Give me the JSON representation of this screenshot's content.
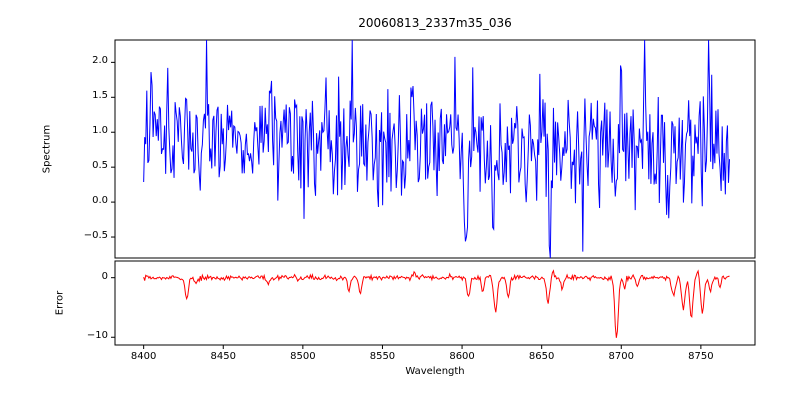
{
  "chart_data": {
    "type": "line",
    "title": "20060813_2337m35_036",
    "xlabel": "Wavelength",
    "grid": false,
    "legend": "none",
    "x": {
      "start": 8400,
      "end": 8768,
      "points": 560,
      "xlim": [
        8382,
        8784
      ],
      "ticks": [
        8400,
        8450,
        8500,
        8550,
        8600,
        8650,
        8700,
        8750
      ],
      "tick_labels": [
        "8400",
        "8450",
        "8500",
        "8550",
        "8600",
        "8650",
        "8700",
        "8750"
      ]
    },
    "seed": 20060813,
    "panels": [
      {
        "name": "spectrum",
        "ylabel": "Spectrum",
        "color": "#0000ff",
        "ylim": [
          -0.8,
          2.32
        ],
        "yticks": [
          2.0,
          1.5,
          1.0,
          0.5,
          0.0,
          -0.5
        ],
        "ytick_labels": [
          "2.0",
          "1.5",
          "1.0",
          "0.5",
          "0.0",
          "−0.5"
        ],
        "noise_mean": 0.85,
        "noise_std": 0.42,
        "features": [
          [
            8405,
            0.7,
            0.8
          ],
          [
            8415,
            0.9,
            0.8
          ],
          [
            8440,
            0.9,
            0.8
          ],
          [
            8531,
            1.2,
            0.8
          ],
          [
            8569,
            0.9,
            0.8
          ],
          [
            8602,
            -1.2,
            1.2
          ],
          [
            8620,
            -1.45,
            1.3
          ],
          [
            8640,
            -0.8,
            1.0
          ],
          [
            8655,
            -1.3,
            1.2
          ],
          [
            8676,
            -0.9,
            1.0
          ],
          [
            8697,
            -0.9,
            1.5
          ],
          [
            8700,
            1.2,
            0.8
          ],
          [
            8715,
            1.3,
            0.8
          ],
          [
            8730,
            -1.1,
            1.2
          ],
          [
            8745,
            -1.0,
            1.2
          ],
          [
            8755,
            1.2,
            0.8
          ]
        ]
      },
      {
        "name": "error",
        "ylabel": "Error",
        "color": "#ff0000",
        "ylim": [
          -11.3,
          2.8
        ],
        "yticks": [
          0,
          -10
        ],
        "ytick_labels": [
          "0",
          "−10"
        ],
        "noise_mean": 0.0,
        "noise_std": 0.22,
        "features": [
          [
            8427,
            -3.6,
            1.5
          ],
          [
            8433,
            -1.2,
            1.0
          ],
          [
            8478,
            -1.6,
            1.2
          ],
          [
            8529,
            -2.2,
            1.2
          ],
          [
            8536,
            -2.6,
            1.2
          ],
          [
            8570,
            0.9,
            1.0
          ],
          [
            8604,
            -3.2,
            1.5
          ],
          [
            8613,
            -2.2,
            1.2
          ],
          [
            8621,
            -5.6,
            1.5
          ],
          [
            8629,
            -3.0,
            1.2
          ],
          [
            8654,
            -4.2,
            1.5
          ],
          [
            8657,
            1.2,
            1.0
          ],
          [
            8663,
            -1.8,
            1.2
          ],
          [
            8697,
            -10.0,
            1.5
          ],
          [
            8702,
            -2.0,
            1.0
          ],
          [
            8710,
            -1.6,
            1.0
          ],
          [
            8733,
            -3.2,
            1.5
          ],
          [
            8739,
            -5.2,
            1.5
          ],
          [
            8744,
            -6.5,
            1.5
          ],
          [
            8748,
            1.5,
            1.0
          ],
          [
            8751,
            -6.0,
            1.5
          ],
          [
            8756,
            -2.5,
            1.2
          ],
          [
            8762,
            -1.5,
            1.0
          ]
        ]
      }
    ]
  }
}
